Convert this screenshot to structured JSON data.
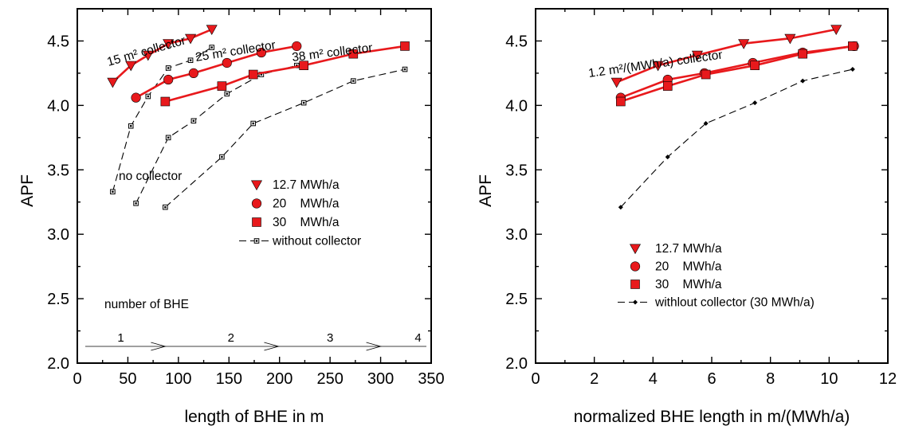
{
  "chart_data": [
    {
      "type": "line",
      "xlabel": "length of BHE in m",
      "ylabel": "APF",
      "xlim": [
        0,
        350
      ],
      "ylim": [
        2.0,
        4.75
      ],
      "xticks": [
        0,
        50,
        100,
        150,
        200,
        250,
        300,
        350
      ],
      "yticks": [
        2.0,
        2.5,
        3.0,
        3.5,
        4.0,
        4.5
      ],
      "ytick_labels": [
        "2.0",
        "2.5",
        "3.0",
        "3.5",
        "4.0",
        "4.5"
      ],
      "grid": false,
      "legend_position": "center-right",
      "series": [
        {
          "name": "12.7 MWh/a",
          "marker": "triangle-down",
          "color": "#e8191c",
          "style": "solid",
          "x": [
            35,
            53,
            70,
            90,
            112,
            133
          ],
          "y": [
            4.18,
            4.31,
            4.39,
            4.48,
            4.52,
            4.59
          ]
        },
        {
          "name": "20    MWh/a",
          "marker": "circle",
          "color": "#e8191c",
          "style": "solid",
          "x": [
            58,
            90,
            115,
            148,
            182,
            217
          ],
          "y": [
            4.06,
            4.2,
            4.25,
            4.33,
            4.41,
            4.46
          ]
        },
        {
          "name": "30    MWh/a",
          "marker": "square",
          "color": "#e8191c",
          "style": "solid",
          "x": [
            87,
            143,
            174,
            224,
            273,
            324
          ],
          "y": [
            4.03,
            4.15,
            4.24,
            4.31,
            4.4,
            4.46
          ]
        },
        {
          "name": "without collector",
          "marker": "small-square",
          "color": "#000000",
          "style": "dashed",
          "x": [
            35,
            53,
            70,
            90,
            112,
            133
          ],
          "y": [
            3.33,
            3.84,
            4.07,
            4.29,
            4.35,
            4.45
          ]
        },
        {
          "name": "",
          "marker": "small-square",
          "color": "#000000",
          "style": "dashed",
          "x": [
            58,
            90,
            115,
            148,
            182,
            217
          ],
          "y": [
            3.24,
            3.75,
            3.88,
            4.09,
            4.24,
            4.31
          ]
        },
        {
          "name": "",
          "marker": "small-square",
          "color": "#000000",
          "style": "dashed",
          "x": [
            87,
            143,
            174,
            224,
            273,
            324
          ],
          "y": [
            3.21,
            3.6,
            3.86,
            4.02,
            4.19,
            4.28
          ]
        }
      ],
      "annotations": [
        {
          "text": "15 m² collector",
          "x": 25,
          "y": 4.4,
          "rotate": -16
        },
        {
          "text": "25 m² collector",
          "x": 146,
          "y": 4.43,
          "rotate": -9
        },
        {
          "text": "38 m² collector",
          "x": 255,
          "y": 4.42,
          "rotate": -7
        },
        {
          "text": "no collector",
          "x": 33,
          "y": 3.47,
          "rotate": 0
        },
        {
          "text": "number of BHE",
          "x": 23,
          "y": 2.55,
          "rotate": 0
        }
      ],
      "bhe_numbers": [
        {
          "label": "1",
          "x": 43
        },
        {
          "label": "2",
          "x": 152
        },
        {
          "label": "3",
          "x": 250
        },
        {
          "label": "4",
          "x": 337
        }
      ],
      "bhe_arrow_ends": [
        87,
        199,
        300
      ],
      "bhe_axis_y": 2.13
    },
    {
      "type": "line",
      "xlabel": "normalized BHE length in m/(MWh/a)",
      "ylabel": "APF",
      "xlim": [
        0,
        12
      ],
      "ylim": [
        2.0,
        4.75
      ],
      "xticks": [
        0,
        2,
        4,
        6,
        8,
        10,
        12
      ],
      "yticks": [
        2.0,
        2.5,
        3.0,
        3.5,
        4.0,
        4.5
      ],
      "ytick_labels": [
        "2.0",
        "2.5",
        "3.0",
        "3.5",
        "4.0",
        "4.5"
      ],
      "grid": false,
      "legend_position": "bottom-right",
      "series": [
        {
          "name": "12.7 MWh/a",
          "marker": "triangle-down",
          "color": "#e8191c",
          "style": "solid",
          "x": [
            2.76,
            4.17,
            5.51,
            7.09,
            8.67,
            10.24
          ],
          "y": [
            4.18,
            4.31,
            4.39,
            4.48,
            4.52,
            4.59
          ]
        },
        {
          "name": "20    MWh/a",
          "marker": "circle",
          "color": "#e8191c",
          "style": "solid",
          "x": [
            2.9,
            4.5,
            5.75,
            7.4,
            9.1,
            10.85
          ],
          "y": [
            4.06,
            4.2,
            4.25,
            4.33,
            4.41,
            4.46
          ]
        },
        {
          "name": "30    MWh/a",
          "marker": "square",
          "color": "#e8191c",
          "style": "solid",
          "x": [
            2.9,
            4.5,
            5.8,
            7.47,
            9.1,
            10.8
          ],
          "y": [
            4.03,
            4.15,
            4.24,
            4.31,
            4.4,
            4.46
          ]
        },
        {
          "name": "withlout collector (30 MWh/a)",
          "marker": "diamond",
          "color": "#000000",
          "style": "dashed",
          "x": [
            2.9,
            4.5,
            5.8,
            7.47,
            9.1,
            10.8
          ],
          "y": [
            3.21,
            3.6,
            3.86,
            4.02,
            4.19,
            4.28
          ]
        }
      ],
      "annotations": [
        {
          "text": "1.2 m²/(MWh/a) collector",
          "x": 2.6,
          "y": 4.3,
          "rotate": -8
        }
      ]
    }
  ]
}
